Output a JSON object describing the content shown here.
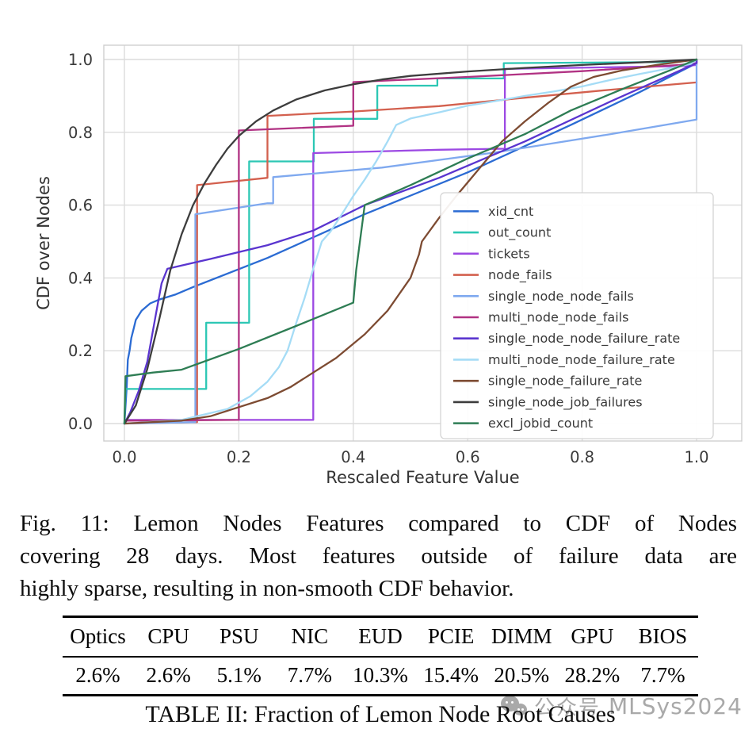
{
  "figure": {
    "xlabel": "Rescaled Feature Value",
    "ylabel": "CDF over Nodes",
    "x_ticks": [
      "0.0",
      "0.2",
      "0.4",
      "0.6",
      "0.8",
      "1.0"
    ],
    "y_ticks": [
      "0.0",
      "0.2",
      "0.4",
      "0.6",
      "0.8",
      "1.0"
    ]
  },
  "chart_data": {
    "type": "line",
    "title": "",
    "xlabel": "Rescaled Feature Value",
    "ylabel": "CDF over Nodes",
    "xlim": [
      0,
      1
    ],
    "ylim": [
      0,
      1
    ],
    "grid": true,
    "legend_position": "lower right",
    "series": [
      {
        "name": "xid_cnt",
        "color": "#2b6bd3",
        "points": [
          [
            0,
            0
          ],
          [
            0.004,
            0.1
          ],
          [
            0.006,
            0.175
          ],
          [
            0.009,
            0.2
          ],
          [
            0.012,
            0.235
          ],
          [
            0.016,
            0.26
          ],
          [
            0.02,
            0.285
          ],
          [
            0.03,
            0.31
          ],
          [
            0.045,
            0.33
          ],
          [
            0.06,
            0.34
          ],
          [
            0.09,
            0.355
          ],
          [
            0.12,
            0.375
          ],
          [
            0.25,
            0.455
          ],
          [
            0.42,
            0.575
          ],
          [
            0.6,
            0.69
          ],
          [
            0.78,
            0.82
          ],
          [
            0.9,
            0.91
          ],
          [
            0.99,
            0.982
          ],
          [
            1,
            0.99
          ],
          [
            1,
            1
          ]
        ]
      },
      {
        "name": "out_count",
        "color": "#2cc7b4",
        "points": [
          [
            0,
            0
          ],
          [
            0.002,
            0.095
          ],
          [
            0.143,
            0.095
          ],
          [
            0.143,
            0.277
          ],
          [
            0.218,
            0.277
          ],
          [
            0.218,
            0.72
          ],
          [
            0.331,
            0.72
          ],
          [
            0.331,
            0.837
          ],
          [
            0.442,
            0.837
          ],
          [
            0.442,
            0.928
          ],
          [
            0.547,
            0.928
          ],
          [
            0.547,
            0.948
          ],
          [
            0.663,
            0.948
          ],
          [
            0.663,
            0.99
          ],
          [
            0.95,
            0.993
          ],
          [
            1,
            1
          ]
        ]
      },
      {
        "name": "tickets",
        "color": "#9c49e3",
        "points": [
          [
            0,
            0
          ],
          [
            0.002,
            0.01
          ],
          [
            0.33,
            0.01
          ],
          [
            0.33,
            0.743
          ],
          [
            0.55,
            0.752
          ],
          [
            0.665,
            0.755
          ],
          [
            0.665,
            0.974
          ],
          [
            0.98,
            0.982
          ],
          [
            1,
            0.985
          ],
          [
            1,
            1
          ]
        ]
      },
      {
        "name": "node_fails",
        "color": "#d3604e",
        "points": [
          [
            0,
            0
          ],
          [
            0.127,
            0.004
          ],
          [
            0.127,
            0.655
          ],
          [
            0.25,
            0.675
          ],
          [
            0.25,
            0.845
          ],
          [
            0.4,
            0.857
          ],
          [
            0.55,
            0.872
          ],
          [
            0.7,
            0.895
          ],
          [
            0.85,
            0.917
          ],
          [
            1,
            0.937
          ]
        ]
      },
      {
        "name": "single_node_node_fails",
        "color": "#7fa9ef",
        "points": [
          [
            0,
            0
          ],
          [
            0.124,
            0.004
          ],
          [
            0.124,
            0.575
          ],
          [
            0.25,
            0.605
          ],
          [
            0.26,
            0.605
          ],
          [
            0.26,
            0.677
          ],
          [
            0.45,
            0.703
          ],
          [
            0.65,
            0.745
          ],
          [
            0.85,
            0.795
          ],
          [
            1,
            0.835
          ],
          [
            1,
            1
          ]
        ]
      },
      {
        "name": "multi_node_node_fails",
        "color": "#b13283",
        "points": [
          [
            0,
            0
          ],
          [
            0.004,
            0.008
          ],
          [
            0.2,
            0.01
          ],
          [
            0.2,
            0.805
          ],
          [
            0.4,
            0.818
          ],
          [
            0.4,
            0.938
          ],
          [
            0.6,
            0.952
          ],
          [
            0.8,
            0.968
          ],
          [
            0.97,
            0.985
          ],
          [
            1,
            0.99
          ],
          [
            1,
            1
          ]
        ]
      },
      {
        "name": "single_node_node_failure_rate",
        "color": "#5a35cf",
        "points": [
          [
            0,
            0
          ],
          [
            0.01,
            0.03
          ],
          [
            0.025,
            0.09
          ],
          [
            0.04,
            0.17
          ],
          [
            0.055,
            0.3
          ],
          [
            0.065,
            0.385
          ],
          [
            0.075,
            0.425
          ],
          [
            0.15,
            0.452
          ],
          [
            0.25,
            0.49
          ],
          [
            0.33,
            0.53
          ],
          [
            0.42,
            0.6
          ],
          [
            0.55,
            0.675
          ],
          [
            0.7,
            0.775
          ],
          [
            0.85,
            0.885
          ],
          [
            0.95,
            0.955
          ],
          [
            1,
            0.99
          ],
          [
            1,
            1
          ]
        ]
      },
      {
        "name": "multi_node_node_failure_rate",
        "color": "#a5dcf6",
        "points": [
          [
            0,
            0
          ],
          [
            0.1,
            0.01
          ],
          [
            0.14,
            0.025
          ],
          [
            0.18,
            0.04
          ],
          [
            0.22,
            0.075
          ],
          [
            0.25,
            0.115
          ],
          [
            0.27,
            0.155
          ],
          [
            0.285,
            0.2
          ],
          [
            0.3,
            0.275
          ],
          [
            0.315,
            0.345
          ],
          [
            0.33,
            0.425
          ],
          [
            0.345,
            0.5
          ],
          [
            0.36,
            0.527
          ],
          [
            0.38,
            0.575
          ],
          [
            0.4,
            0.625
          ],
          [
            0.42,
            0.67
          ],
          [
            0.44,
            0.72
          ],
          [
            0.46,
            0.775
          ],
          [
            0.475,
            0.82
          ],
          [
            0.5,
            0.838
          ],
          [
            0.55,
            0.855
          ],
          [
            0.6,
            0.873
          ],
          [
            0.65,
            0.886
          ],
          [
            0.7,
            0.9
          ],
          [
            0.75,
            0.912
          ],
          [
            0.8,
            0.926
          ],
          [
            0.85,
            0.944
          ],
          [
            0.9,
            0.96
          ],
          [
            0.95,
            0.975
          ],
          [
            0.99,
            0.988
          ],
          [
            1,
            1
          ]
        ]
      },
      {
        "name": "single_node_failure_rate",
        "color": "#7d4b32",
        "points": [
          [
            0,
            0
          ],
          [
            0.1,
            0.008
          ],
          [
            0.15,
            0.02
          ],
          [
            0.2,
            0.045
          ],
          [
            0.25,
            0.07
          ],
          [
            0.29,
            0.1
          ],
          [
            0.33,
            0.14
          ],
          [
            0.37,
            0.18
          ],
          [
            0.42,
            0.245
          ],
          [
            0.46,
            0.31
          ],
          [
            0.5,
            0.4
          ],
          [
            0.515,
            0.465
          ],
          [
            0.52,
            0.5
          ],
          [
            0.55,
            0.565
          ],
          [
            0.58,
            0.625
          ],
          [
            0.62,
            0.7
          ],
          [
            0.66,
            0.775
          ],
          [
            0.7,
            0.83
          ],
          [
            0.74,
            0.88
          ],
          [
            0.78,
            0.925
          ],
          [
            0.82,
            0.952
          ],
          [
            0.87,
            0.97
          ],
          [
            0.93,
            0.985
          ],
          [
            1,
            1
          ]
        ]
      },
      {
        "name": "single_node_job_failures",
        "color": "#3d3d3d",
        "points": [
          [
            0,
            0
          ],
          [
            0.02,
            0.05
          ],
          [
            0.04,
            0.15
          ],
          [
            0.06,
            0.28
          ],
          [
            0.08,
            0.42
          ],
          [
            0.1,
            0.52
          ],
          [
            0.12,
            0.6
          ],
          [
            0.14,
            0.66
          ],
          [
            0.16,
            0.71
          ],
          [
            0.18,
            0.755
          ],
          [
            0.2,
            0.79
          ],
          [
            0.23,
            0.83
          ],
          [
            0.26,
            0.86
          ],
          [
            0.3,
            0.89
          ],
          [
            0.35,
            0.915
          ],
          [
            0.4,
            0.932
          ],
          [
            0.45,
            0.945
          ],
          [
            0.5,
            0.955
          ],
          [
            0.6,
            0.967
          ],
          [
            0.7,
            0.977
          ],
          [
            0.8,
            0.985
          ],
          [
            0.9,
            0.992
          ],
          [
            1,
            1
          ]
        ]
      },
      {
        "name": "excl_jobid_count",
        "color": "#2e7d54",
        "points": [
          [
            0,
            0
          ],
          [
            0.002,
            0.13
          ],
          [
            0.05,
            0.14
          ],
          [
            0.1,
            0.148
          ],
          [
            0.2,
            0.205
          ],
          [
            0.3,
            0.268
          ],
          [
            0.4,
            0.332
          ],
          [
            0.405,
            0.42
          ],
          [
            0.42,
            0.6
          ],
          [
            0.5,
            0.655
          ],
          [
            0.6,
            0.728
          ],
          [
            0.7,
            0.795
          ],
          [
            0.78,
            0.86
          ],
          [
            0.88,
            0.925
          ],
          [
            0.95,
            0.968
          ],
          [
            1,
            1
          ]
        ]
      }
    ]
  },
  "caption": {
    "line1": "Fig. 11: Lemon Nodes Features compared to CDF of Nodes",
    "line2": "covering 28 days. Most features outside of failure data are",
    "line3": "highly sparse, resulting in non-smooth CDF behavior."
  },
  "table": {
    "headers": [
      "Optics",
      "CPU",
      "PSU",
      "NIC",
      "EUD",
      "PCIE",
      "DIMM",
      "GPU",
      "BIOS"
    ],
    "values": [
      "2.6%",
      "2.6%",
      "5.1%",
      "7.7%",
      "10.3%",
      "15.4%",
      "20.5%",
      "28.2%",
      "7.7%"
    ]
  },
  "table_caption": "TABLE II: Fraction of Lemon Node Root Causes",
  "watermark": {
    "icon": "wechat-icon",
    "text_cn": "公众号",
    "text_en": "MLSys2024",
    "color": "#a9a9a9"
  }
}
